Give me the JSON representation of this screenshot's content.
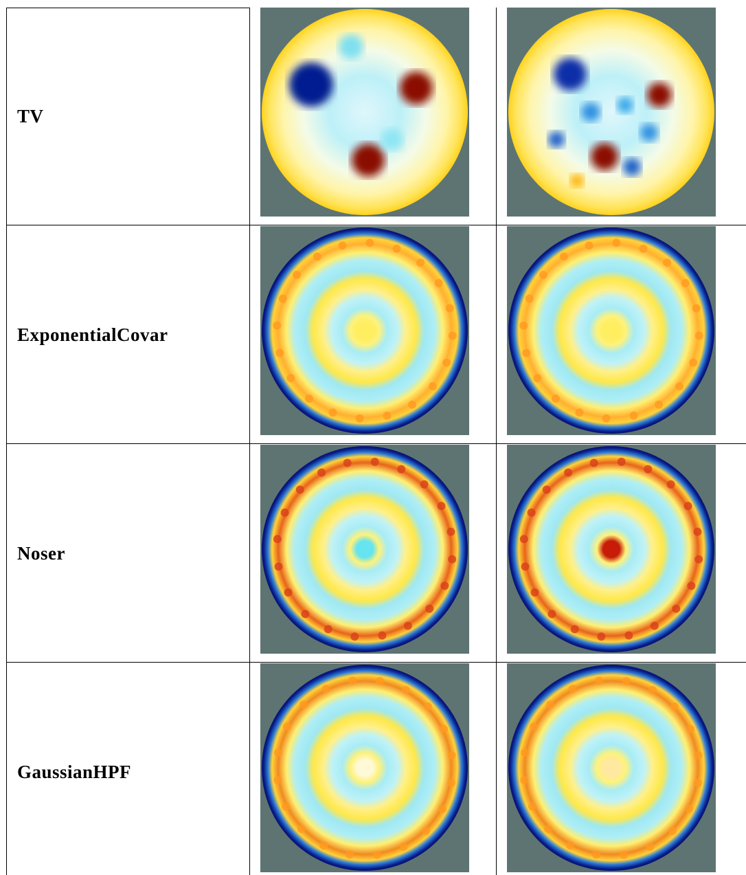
{
  "table": {
    "rows": [
      [
        "TV"
      ],
      [
        "ExponentialCovar"
      ],
      [
        "Noser"
      ],
      [
        "GaussianHPF"
      ]
    ]
  }
}
